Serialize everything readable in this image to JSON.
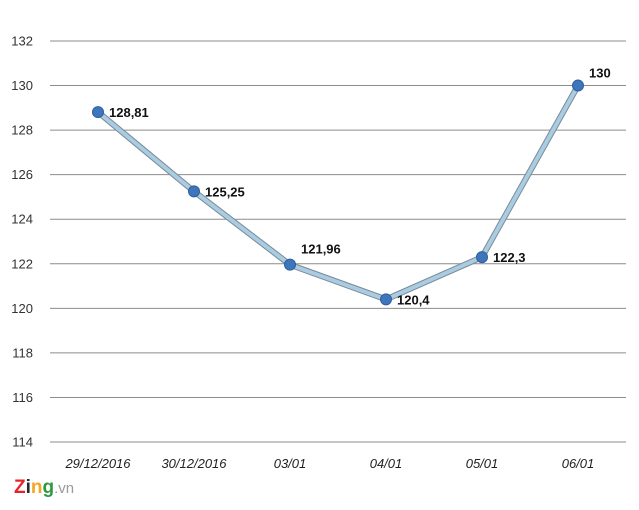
{
  "chart_data": {
    "type": "line",
    "categories": [
      "29/12/2016",
      "30/12/2016",
      "03/01",
      "04/01",
      "05/01",
      "06/01"
    ],
    "values": [
      128.81,
      125.25,
      121.96,
      120.4,
      122.3,
      130
    ],
    "value_labels": [
      "128,81",
      "125,25",
      "121,96",
      "120,4",
      "122,3",
      "130"
    ],
    "ylim": [
      114,
      132
    ],
    "yticks": [
      114,
      116,
      118,
      120,
      122,
      124,
      126,
      128,
      130,
      132
    ],
    "grid": true,
    "title": "",
    "xlabel": "",
    "ylabel": "",
    "line_color": "#a9cce0",
    "line_edge_color": "#7a8a9a",
    "marker_color": "#3f76bb"
  },
  "watermark": {
    "brand": "Zing",
    "suffix": ".vn",
    "brand_colors": [
      "#e8222a",
      "#2a2a2a",
      "#f5a623",
      "#2e9a3e"
    ]
  }
}
